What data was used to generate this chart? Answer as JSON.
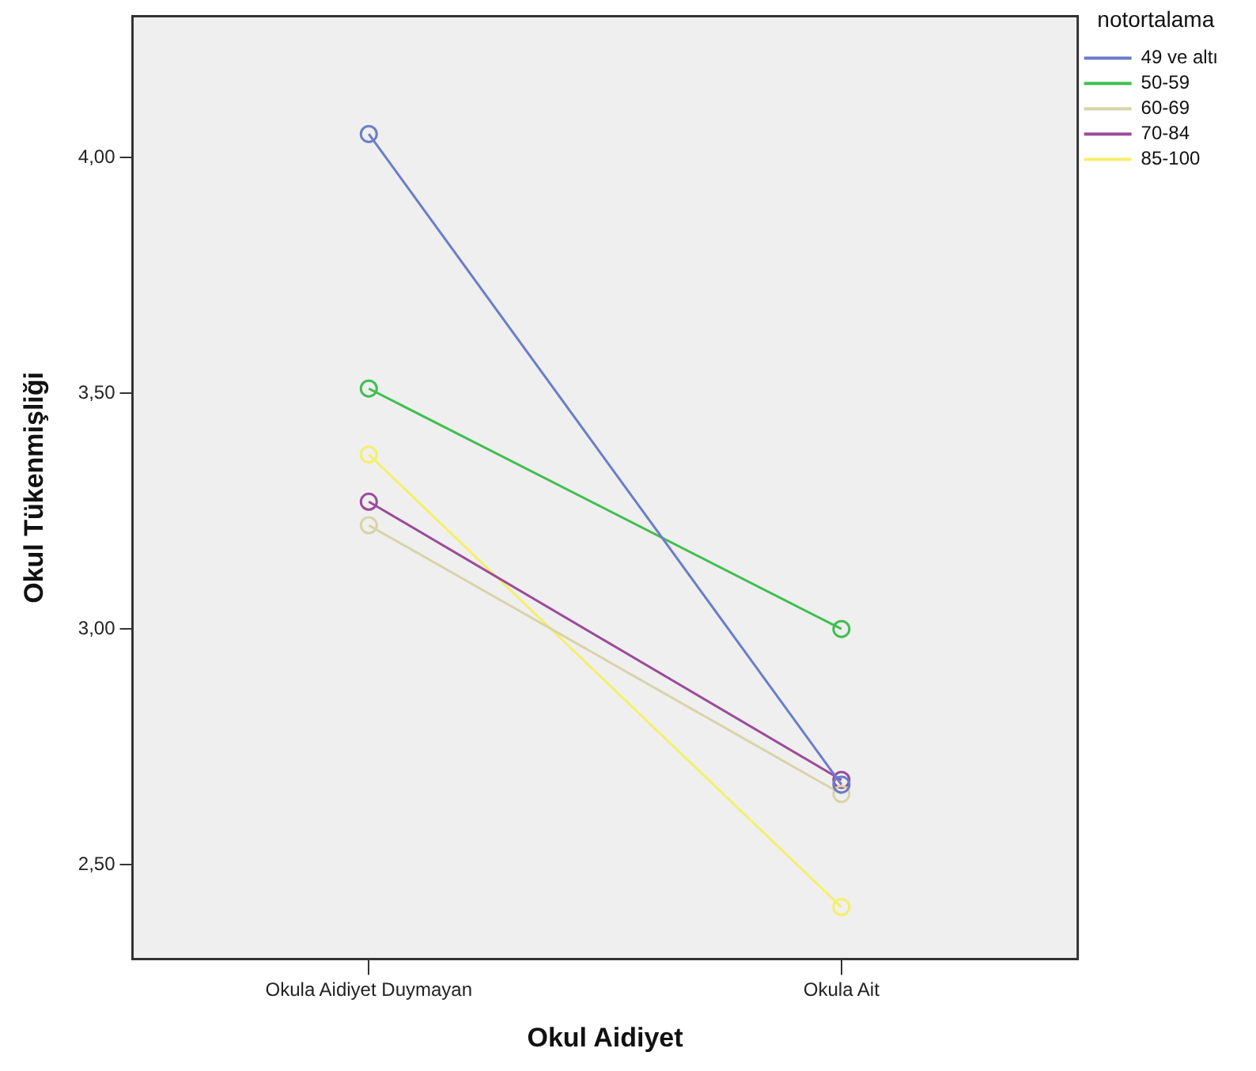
{
  "chart_data": {
    "type": "line",
    "xlabel": "Okul Aidiyet",
    "ylabel": "Okul Tükenmişliği",
    "legend_title": "notortalama",
    "categories": [
      "Okula Aidiyet Duymayan",
      "Okula Ait"
    ],
    "series": [
      {
        "name": "49 ve altı",
        "color": "#6b7cc9",
        "values": [
          4.05,
          2.67
        ]
      },
      {
        "name": "50-59",
        "color": "#3fbf4f",
        "values": [
          3.51,
          3.0
        ]
      },
      {
        "name": "60-69",
        "color": "#d8d4a8",
        "values": [
          3.22,
          2.65
        ]
      },
      {
        "name": "70-84",
        "color": "#9b4b9b",
        "values": [
          3.27,
          2.68
        ]
      },
      {
        "name": "85-100",
        "color": "#f4f06a",
        "values": [
          3.37,
          2.41
        ]
      }
    ],
    "ylim": [
      2.3,
      4.3
    ],
    "yticks": [
      {
        "value": 2.5,
        "label": "2,50"
      },
      {
        "value": 3,
        "label": "3,00"
      },
      {
        "value": 3.5,
        "label": "3,50"
      },
      {
        "value": 4,
        "label": "4,00"
      }
    ],
    "grid": false,
    "legend": "top right",
    "marker": "circle",
    "line_style": "solid"
  }
}
